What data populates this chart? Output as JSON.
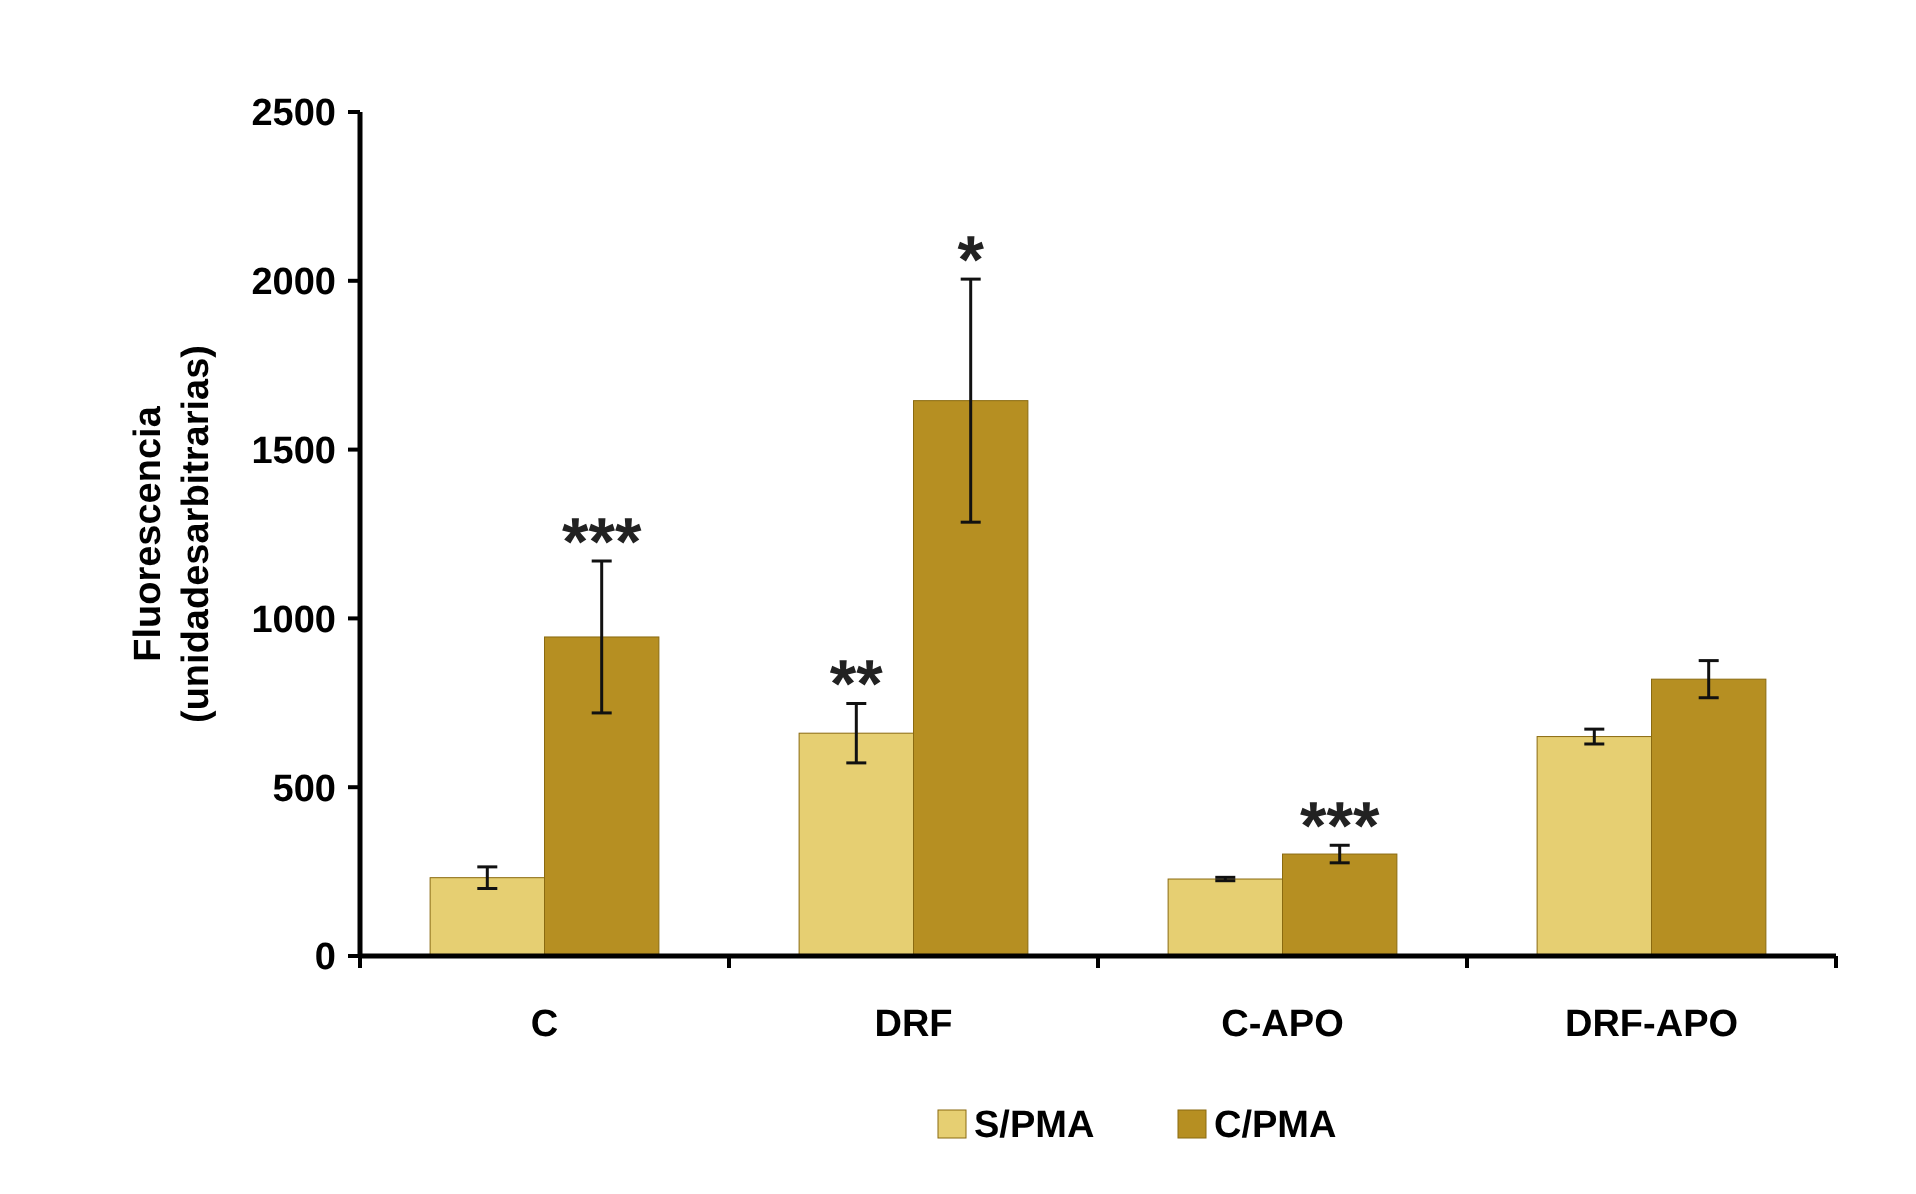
{
  "chart_data": {
    "type": "bar",
    "ylabel": "Fluorescencia\n(unidadesarbitrarias)",
    "categories": [
      "C",
      "DRF",
      "C-APO",
      "DRF-APO"
    ],
    "series": [
      {
        "name": "S/PMA",
        "color": "#e6cf72",
        "values": [
          232,
          660,
          228,
          650
        ],
        "errors": [
          32,
          88,
          5,
          22
        ]
      },
      {
        "name": "C/PMA",
        "color": "#b68f22",
        "values": [
          945,
          1645,
          302,
          820
        ],
        "errors": [
          225,
          360,
          26,
          55
        ]
      }
    ],
    "ylim": [
      0,
      2500
    ],
    "yticks": [
      0,
      500,
      1000,
      1500,
      2000,
      2500
    ],
    "grid": false,
    "legend": "bottom",
    "annotations": [
      {
        "text": "***",
        "x": "C",
        "y": 945
      },
      {
        "text": "**",
        "x": "DRF",
        "y": 660
      },
      {
        "text": "*",
        "x": "DRF",
        "y": 1645
      },
      {
        "text": "***",
        "x": "C-APO",
        "y": 302
      }
    ]
  }
}
